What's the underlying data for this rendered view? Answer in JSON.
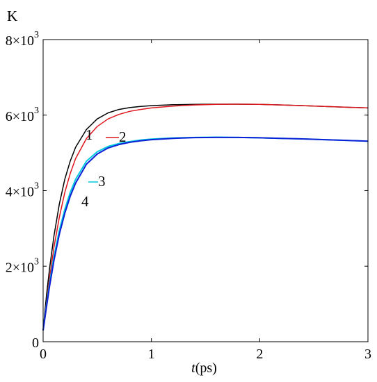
{
  "chart_data": {
    "type": "line",
    "y_unit_label": "K",
    "xlabel": {
      "italic": "t",
      "rest": "(ps)"
    },
    "xlim": [
      0,
      3
    ],
    "ylim": [
      0,
      8000
    ],
    "grid": false,
    "x_ticks": [
      {
        "value": 0,
        "label": "0"
      },
      {
        "value": 1,
        "label": "1"
      },
      {
        "value": 2,
        "label": "2"
      },
      {
        "value": 3,
        "label": "3"
      }
    ],
    "y_ticks": [
      {
        "value": 0,
        "base": "0",
        "exp": ""
      },
      {
        "value": 2000,
        "base": "2×10",
        "exp": "3"
      },
      {
        "value": 4000,
        "base": "4×10",
        "exp": "3"
      },
      {
        "value": 6000,
        "base": "6×10",
        "exp": "3"
      },
      {
        "value": 8000,
        "base": "8×10",
        "exp": "3"
      }
    ],
    "series": [
      {
        "name": "1",
        "color": "#000000",
        "x": [
          0.0,
          0.03,
          0.06,
          0.1,
          0.15,
          0.2,
          0.25,
          0.3,
          0.4,
          0.5,
          0.6,
          0.7,
          0.8,
          0.9,
          1.0,
          1.2,
          1.4,
          1.6,
          1.8,
          2.0,
          2.2,
          2.4,
          2.6,
          2.8,
          3.0
        ],
        "y": [
          300,
          1200,
          1950,
          2800,
          3650,
          4300,
          4780,
          5150,
          5620,
          5900,
          6060,
          6150,
          6200,
          6230,
          6250,
          6275,
          6285,
          6290,
          6290,
          6285,
          6270,
          6250,
          6230,
          6210,
          6190
        ]
      },
      {
        "name": "2",
        "color": "#e0151c",
        "x": [
          0.0,
          0.03,
          0.06,
          0.1,
          0.15,
          0.2,
          0.25,
          0.3,
          0.4,
          0.5,
          0.6,
          0.7,
          0.8,
          0.9,
          1.0,
          1.2,
          1.4,
          1.6,
          1.8,
          2.0,
          2.2,
          2.4,
          2.6,
          2.8,
          3.0
        ],
        "y": [
          300,
          1000,
          1700,
          2500,
          3300,
          3950,
          4450,
          4850,
          5380,
          5700,
          5900,
          6020,
          6100,
          6150,
          6190,
          6240,
          6270,
          6285,
          6290,
          6285,
          6270,
          6250,
          6230,
          6210,
          6190
        ]
      },
      {
        "name": "3",
        "color": "#00c8e0",
        "x": [
          0.0,
          0.03,
          0.06,
          0.1,
          0.15,
          0.2,
          0.25,
          0.3,
          0.4,
          0.5,
          0.6,
          0.7,
          0.8,
          0.9,
          1.0,
          1.2,
          1.4,
          1.6,
          1.8,
          2.0,
          2.2,
          2.4,
          2.6,
          2.8,
          3.0
        ],
        "y": [
          300,
          950,
          1550,
          2250,
          2950,
          3500,
          3950,
          4300,
          4780,
          5030,
          5170,
          5250,
          5300,
          5340,
          5365,
          5395,
          5410,
          5415,
          5410,
          5400,
          5385,
          5370,
          5350,
          5330,
          5310
        ]
      },
      {
        "name": "4",
        "color": "#0b1fd6",
        "x": [
          0.0,
          0.03,
          0.06,
          0.1,
          0.15,
          0.2,
          0.25,
          0.3,
          0.4,
          0.5,
          0.6,
          0.7,
          0.8,
          0.9,
          1.0,
          1.2,
          1.4,
          1.6,
          1.8,
          2.0,
          2.2,
          2.4,
          2.6,
          2.8,
          3.0
        ],
        "y": [
          300,
          900,
          1480,
          2150,
          2850,
          3400,
          3850,
          4200,
          4700,
          4970,
          5130,
          5220,
          5280,
          5320,
          5350,
          5385,
          5405,
          5410,
          5410,
          5400,
          5385,
          5370,
          5350,
          5330,
          5310
        ]
      }
    ],
    "annotations": [
      {
        "text": "1",
        "series": "1"
      },
      {
        "text": "2",
        "series": "2"
      },
      {
        "text": "3",
        "series": "3"
      },
      {
        "text": "4",
        "series": "4"
      }
    ]
  }
}
